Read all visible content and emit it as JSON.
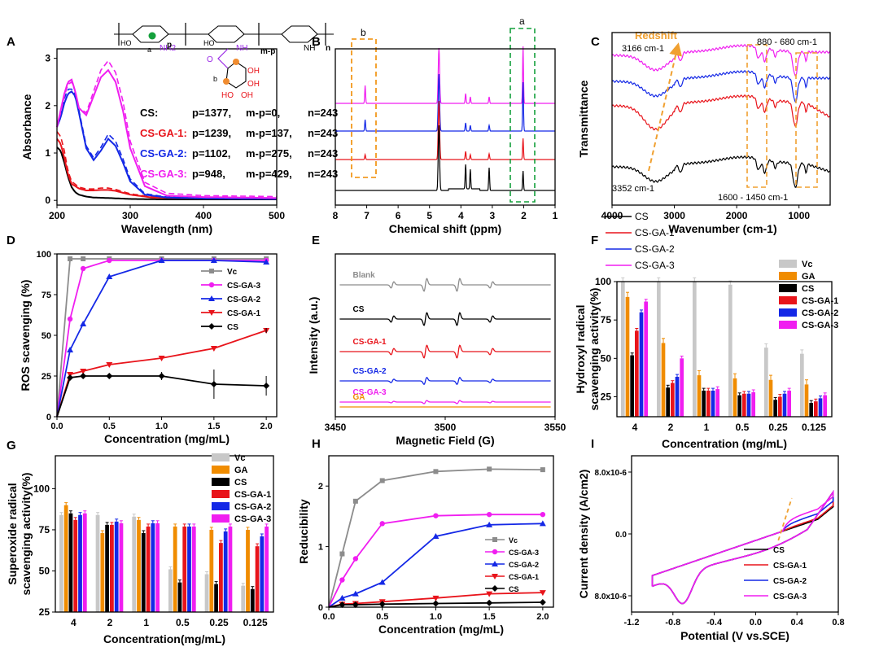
{
  "figure": {
    "colors": {
      "black": "#000000",
      "red": "#e8141b",
      "blue": "#1428e6",
      "magenta": "#f01ef0",
      "gray": "#8c8c8c",
      "orange": "#f08c00",
      "lightgray": "#c8c8c8",
      "green": "#14a03c"
    }
  },
  "chart_data": [
    {
      "panel": "A",
      "type": "line",
      "xlabel": "Wavelength (nm)",
      "ylabel": "Absorbance",
      "xlim": [
        200,
        500
      ],
      "ylim": [
        -0.1,
        3.2
      ],
      "xticks": [
        200,
        300,
        400,
        500
      ],
      "yticks": [
        0,
        1,
        2,
        3
      ],
      "annotations": [
        {
          "label": "CS:",
          "p": "p=1377,",
          "mp": "m-p=0,",
          "n": "n=243",
          "color": "black"
        },
        {
          "label": "CS-GA-1:",
          "p": "p=1239,",
          "mp": "m-p=137,",
          "n": "n=243",
          "color": "red"
        },
        {
          "label": "CS-GA-2:",
          "p": "p=1102,",
          "mp": "m-p=275,",
          "n": "n=243",
          "color": "blue"
        },
        {
          "label": "CS-GA-3:",
          "p": "p=948,",
          "mp": "m-p=429,",
          "n": "n=243",
          "color": "magenta"
        }
      ],
      "structure_labels": {
        "a": "a",
        "b": "b",
        "nh2": "NH2",
        "nh": "NH",
        "ho": "HO",
        "oh": "OH",
        "p": "p",
        "mp": "m-p",
        "n": "n"
      },
      "series": [
        {
          "color": "black",
          "dash": false,
          "x": [
            200,
            205,
            210,
            215,
            220,
            225,
            230,
            240,
            250,
            270,
            300,
            350,
            400,
            500
          ],
          "y": [
            1.12,
            1.05,
            0.8,
            0.5,
            0.28,
            0.17,
            0.12,
            0.08,
            0.06,
            0.05,
            0.03,
            0.02,
            0.02,
            0.02
          ]
        },
        {
          "color": "red",
          "dash": false,
          "x": [
            200,
            205,
            210,
            215,
            220,
            230,
            240,
            250,
            260,
            270,
            280,
            300,
            330,
            400,
            500
          ],
          "y": [
            1.3,
            1.2,
            0.9,
            0.55,
            0.35,
            0.25,
            0.21,
            0.21,
            0.22,
            0.22,
            0.2,
            0.12,
            0.06,
            0.04,
            0.03
          ]
        },
        {
          "color": "red",
          "dash": true,
          "x": [
            200,
            205,
            210,
            215,
            220,
            230,
            240,
            250,
            260,
            270,
            280,
            300,
            330,
            400,
            500
          ],
          "y": [
            1.45,
            1.35,
            1.05,
            0.62,
            0.4,
            0.28,
            0.24,
            0.24,
            0.26,
            0.26,
            0.23,
            0.14,
            0.07,
            0.05,
            0.04
          ]
        },
        {
          "color": "blue",
          "dash": false,
          "x": [
            200,
            205,
            210,
            215,
            220,
            225,
            230,
            240,
            250,
            260,
            270,
            280,
            290,
            300,
            320,
            350,
            400,
            500
          ],
          "y": [
            1.55,
            1.75,
            2.05,
            2.25,
            2.3,
            2.2,
            1.85,
            1.1,
            0.85,
            1.05,
            1.3,
            1.15,
            0.8,
            0.4,
            0.12,
            0.06,
            0.04,
            0.03
          ]
        },
        {
          "color": "blue",
          "dash": true,
          "x": [
            200,
            205,
            210,
            215,
            220,
            225,
            230,
            240,
            250,
            260,
            270,
            280,
            290,
            300,
            320,
            350,
            400,
            500
          ],
          "y": [
            1.6,
            1.85,
            2.15,
            2.35,
            2.35,
            2.25,
            1.9,
            1.15,
            0.9,
            1.12,
            1.4,
            1.25,
            0.88,
            0.45,
            0.14,
            0.07,
            0.05,
            0.04
          ]
        },
        {
          "color": "magenta",
          "dash": false,
          "x": [
            200,
            205,
            210,
            215,
            220,
            225,
            230,
            240,
            250,
            260,
            270,
            280,
            290,
            300,
            320,
            350,
            400,
            500
          ],
          "y": [
            1.55,
            1.9,
            2.25,
            2.5,
            2.55,
            2.3,
            1.95,
            1.8,
            2.2,
            2.6,
            2.75,
            2.5,
            1.9,
            1.1,
            0.3,
            0.1,
            0.07,
            0.05
          ]
        },
        {
          "color": "magenta",
          "dash": true,
          "x": [
            200,
            205,
            210,
            215,
            220,
            225,
            230,
            240,
            250,
            260,
            270,
            280,
            290,
            300,
            320,
            350,
            400,
            500
          ],
          "y": [
            1.55,
            1.85,
            2.2,
            2.45,
            2.5,
            2.3,
            1.95,
            1.85,
            2.3,
            2.75,
            2.95,
            2.7,
            2.1,
            1.25,
            0.38,
            0.15,
            0.1,
            0.08
          ]
        }
      ]
    },
    {
      "panel": "B",
      "type": "line",
      "xlabel": "Chemical shift (ppm)",
      "xlim": [
        8,
        1
      ],
      "xticks": [
        8,
        7,
        6,
        5,
        4,
        3,
        2,
        1
      ],
      "box_labels": [
        "b",
        "a"
      ],
      "series": [
        {
          "color": "magenta",
          "baseline": 127,
          "peaks": [
            [
              7.05,
              22
            ],
            [
              4.7,
              68
            ],
            [
              3.85,
              12
            ],
            [
              3.7,
              8
            ],
            [
              3.1,
              8
            ],
            [
              2.02,
              70
            ]
          ]
        },
        {
          "color": "blue",
          "baseline": 161,
          "peaks": [
            [
              7.05,
              14
            ],
            [
              4.7,
              70
            ],
            [
              3.85,
              10
            ],
            [
              3.7,
              7
            ],
            [
              3.1,
              7
            ],
            [
              2.02,
              60
            ]
          ]
        },
        {
          "color": "red",
          "baseline": 196,
          "peaks": [
            [
              7.05,
              6
            ],
            [
              4.7,
              72
            ],
            [
              3.85,
              10
            ],
            [
              3.7,
              6
            ],
            [
              3.1,
              7
            ],
            [
              2.02,
              26
            ]
          ]
        },
        {
          "color": "black",
          "baseline": 234,
          "peaks": [
            [
              4.7,
              80
            ],
            [
              3.85,
              30
            ],
            [
              3.7,
              24
            ],
            [
              3.1,
              28
            ],
            [
              2.02,
              24
            ]
          ]
        }
      ]
    },
    {
      "panel": "C",
      "type": "line",
      "xlabel": "Wavenumber (cm-1)",
      "ylabel": "Transmittance",
      "xlim": [
        4000,
        500
      ],
      "xticks": [
        4000,
        3000,
        2000,
        1000
      ],
      "annotations": [
        "Redshift",
        "3166 cm-1",
        "3352 cm-1",
        "880 - 680 cm-1",
        "1600 - 1450 cm-1"
      ],
      "legend": [
        "CS",
        "CS-GA-1",
        "CS-GA-2",
        "CS-GA-3"
      ],
      "series": [
        {
          "name": "CS-GA-3",
          "color": "magenta"
        },
        {
          "name": "CS-GA-2",
          "color": "blue"
        },
        {
          "name": "CS-GA-1",
          "color": "red"
        },
        {
          "name": "CS",
          "color": "black"
        }
      ]
    },
    {
      "panel": "D",
      "type": "line",
      "xlabel": "Concentration (mg/mL)",
      "ylabel": "ROS scavenging (%)",
      "xlim": [
        0,
        2.1
      ],
      "ylim": [
        0,
        100
      ],
      "xticks": [
        0.0,
        0.5,
        1.0,
        1.5,
        2.0
      ],
      "yticks": [
        0,
        25,
        50,
        75,
        100
      ],
      "series": [
        {
          "name": "Vc",
          "color": "gray",
          "x": [
            0,
            0.125,
            0.25,
            0.5,
            1,
            1.5,
            2
          ],
          "y": [
            0,
            97,
            97,
            97,
            97,
            97,
            97
          ]
        },
        {
          "name": "CS-GA-3",
          "color": "magenta",
          "x": [
            0,
            0.125,
            0.25,
            0.5,
            1,
            1.5,
            2
          ],
          "y": [
            0,
            60,
            91,
            96,
            96,
            96,
            96
          ]
        },
        {
          "name": "CS-GA-2",
          "color": "blue",
          "x": [
            0,
            0.125,
            0.25,
            0.5,
            1,
            1.5,
            2
          ],
          "y": [
            0,
            41,
            57,
            86,
            96,
            96,
            95
          ]
        },
        {
          "name": "CS-GA-1",
          "color": "red",
          "x": [
            0,
            0.125,
            0.25,
            0.5,
            1,
            1.5,
            2
          ],
          "y": [
            0,
            26,
            28,
            32,
            36,
            42,
            53
          ]
        },
        {
          "name": "CS",
          "color": "black",
          "x": [
            0,
            0.125,
            0.25,
            0.5,
            1,
            1.5,
            2
          ],
          "y": [
            0,
            24,
            25,
            25,
            25,
            20,
            19
          ]
        }
      ]
    },
    {
      "panel": "E",
      "type": "line",
      "xlabel": "Magnetic Field (G)",
      "ylabel": "Intensity (a.u.)",
      "xlim": [
        3450,
        3550
      ],
      "xticks": [
        3450,
        3500,
        3550
      ],
      "series": [
        {
          "name": "Blank",
          "color": "gray",
          "amp": 1.0
        },
        {
          "name": "CS",
          "color": "black",
          "amp": 1.0
        },
        {
          "name": "CS-GA-1",
          "color": "red",
          "amp": 1.0
        },
        {
          "name": "CS-GA-2",
          "color": "blue",
          "amp": 0.55
        },
        {
          "name": "CS-GA-3",
          "color": "magenta",
          "amp": 0.25
        },
        {
          "name": "GA",
          "color": "orange",
          "amp": 0.0
        }
      ]
    },
    {
      "panel": "F",
      "type": "bar",
      "xlabel": "Concentration (mg/mL)",
      "ylabel": "Hydroxyl radical scavenging activity(%)",
      "ylim": [
        12,
        100
      ],
      "yticks": [
        25,
        50,
        75,
        100
      ],
      "categories": [
        "4",
        "2",
        "1",
        "0.5",
        "0.25",
        "0.125"
      ],
      "series": [
        {
          "name": "Vc",
          "color": "lightgray",
          "values": [
            100,
            100,
            100,
            98,
            57,
            53
          ]
        },
        {
          "name": "GA",
          "color": "orange",
          "values": [
            90,
            60,
            39,
            37,
            36,
            33
          ]
        },
        {
          "name": "CS",
          "color": "black",
          "values": [
            52,
            31,
            29,
            26,
            23,
            21
          ]
        },
        {
          "name": "CS-GA-1",
          "color": "red",
          "values": [
            68,
            34,
            29,
            27,
            25,
            22
          ]
        },
        {
          "name": "CS-GA-2",
          "color": "blue",
          "values": [
            80,
            38,
            29,
            27,
            27,
            24
          ]
        },
        {
          "name": "CS-GA-3",
          "color": "magenta",
          "values": [
            87,
            50,
            30,
            28,
            29,
            26
          ]
        }
      ]
    },
    {
      "panel": "G",
      "type": "bar",
      "xlabel": "Concentration(mg/mL)",
      "ylabel": "Superoxide radical scavenging activity(%)",
      "ylim": [
        25,
        120
      ],
      "yticks": [
        25,
        50,
        75,
        100
      ],
      "categories": [
        "4",
        "2",
        "1",
        "0.5",
        "0.25",
        "0.125"
      ],
      "series": [
        {
          "name": "Vc",
          "color": "lightgray",
          "values": [
            84,
            84,
            83,
            51,
            48,
            41
          ]
        },
        {
          "name": "GA",
          "color": "orange",
          "values": [
            90,
            73,
            81,
            77,
            75,
            75
          ]
        },
        {
          "name": "CS",
          "color": "black",
          "values": [
            85,
            78,
            73,
            43,
            42,
            39
          ]
        },
        {
          "name": "CS-GA-1",
          "color": "red",
          "values": [
            81,
            78,
            77,
            77,
            67,
            65
          ]
        },
        {
          "name": "CS-GA-2",
          "color": "blue",
          "values": [
            84,
            80,
            79,
            77,
            74,
            71
          ]
        },
        {
          "name": "CS-GA-3",
          "color": "magenta",
          "values": [
            85,
            79,
            79,
            77,
            77,
            77
          ]
        }
      ]
    },
    {
      "panel": "H",
      "type": "line",
      "xlabel": "Concentration (mg/mL)",
      "ylabel": "Reducibility",
      "xlim": [
        0,
        2.1
      ],
      "ylim": [
        0,
        2.5
      ],
      "xticks": [
        0.0,
        0.5,
        1.0,
        1.5,
        2.0
      ],
      "yticks": [
        0,
        1,
        2
      ],
      "series": [
        {
          "name": "Vc",
          "color": "gray",
          "x": [
            0,
            0.125,
            0.25,
            0.5,
            1,
            1.5,
            2
          ],
          "y": [
            0,
            0.88,
            1.75,
            2.09,
            2.24,
            2.28,
            2.27
          ]
        },
        {
          "name": "CS-GA-3",
          "color": "magenta",
          "x": [
            0,
            0.125,
            0.25,
            0.5,
            1,
            1.5,
            2
          ],
          "y": [
            0,
            0.45,
            0.8,
            1.38,
            1.51,
            1.53,
            1.53
          ]
        },
        {
          "name": "CS-GA-2",
          "color": "blue",
          "x": [
            0,
            0.125,
            0.25,
            0.5,
            1,
            1.5,
            2
          ],
          "y": [
            0,
            0.15,
            0.22,
            0.41,
            1.17,
            1.36,
            1.38
          ]
        },
        {
          "name": "CS-GA-1",
          "color": "red",
          "x": [
            0,
            0.125,
            0.25,
            0.5,
            1,
            1.5,
            2
          ],
          "y": [
            0,
            0.05,
            0.06,
            0.09,
            0.15,
            0.22,
            0.24
          ]
        },
        {
          "name": "CS",
          "color": "black",
          "x": [
            0,
            0.125,
            0.25,
            0.5,
            1,
            1.5,
            2
          ],
          "y": [
            0,
            0.04,
            0.04,
            0.05,
            0.06,
            0.07,
            0.08
          ]
        }
      ]
    },
    {
      "panel": "I",
      "type": "line",
      "xlabel": "Potential (V vs.SCE)",
      "ylabel": "Current density (A/cm2)",
      "xlim": [
        -1.2,
        0.8
      ],
      "xticks": [
        "-1.2",
        "-0.8",
        "-0.4",
        "0.0",
        "0.4",
        "0.8"
      ],
      "yticks": [
        "8.0x10-6",
        "0.0",
        "8.0x10-6"
      ],
      "series": [
        {
          "name": "CS",
          "color": "black",
          "ox": 0.0
        },
        {
          "name": "CS-GA-1",
          "color": "red",
          "ox": 0.05
        },
        {
          "name": "CS-GA-2",
          "color": "blue",
          "ox": 0.25
        },
        {
          "name": "CS-GA-3",
          "color": "magenta",
          "ox": 0.45
        }
      ]
    }
  ]
}
